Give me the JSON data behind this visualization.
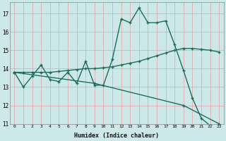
{
  "xlabel": "Humidex (Indice chaleur)",
  "background_color": "#cde8e8",
  "grid_color": "#e8a0a0",
  "line_color": "#1a6e5e",
  "xlim_min": -0.5,
  "xlim_max": 23.5,
  "ylim_min": 11,
  "ylim_max": 17.6,
  "yticks": [
    11,
    12,
    13,
    14,
    15,
    16,
    17
  ],
  "xticks": [
    0,
    1,
    2,
    3,
    4,
    5,
    6,
    7,
    8,
    9,
    10,
    11,
    12,
    13,
    14,
    15,
    16,
    17,
    18,
    19,
    20,
    21,
    22,
    23
  ],
  "line1_x": [
    0,
    1,
    2,
    3,
    4,
    5,
    6,
    7,
    8,
    9,
    10,
    11,
    12,
    13,
    14,
    15,
    16,
    17,
    18,
    19,
    20,
    21,
    22,
    23
  ],
  "line1_y": [
    13.8,
    13.0,
    13.6,
    14.2,
    13.4,
    13.3,
    13.8,
    13.2,
    14.4,
    13.1,
    13.1,
    14.5,
    16.7,
    16.5,
    17.3,
    16.5,
    16.5,
    16.6,
    15.3,
    13.9,
    12.4,
    11.3,
    10.9,
    10.85
  ],
  "line2_x": [
    0,
    1,
    2,
    3,
    4,
    5,
    6,
    7,
    8,
    9,
    10,
    11,
    12,
    13,
    14,
    15,
    16,
    17,
    18,
    19,
    20,
    21,
    22,
    23
  ],
  "line2_y": [
    13.8,
    13.8,
    13.8,
    13.8,
    13.8,
    13.85,
    13.9,
    13.95,
    14.0,
    14.0,
    14.05,
    14.1,
    14.2,
    14.3,
    14.4,
    14.55,
    14.7,
    14.85,
    15.0,
    15.1,
    15.1,
    15.05,
    15.0,
    14.9
  ],
  "line3_x": [
    0,
    9,
    19,
    23
  ],
  "line3_y": [
    13.8,
    13.2,
    12.0,
    11.0
  ]
}
